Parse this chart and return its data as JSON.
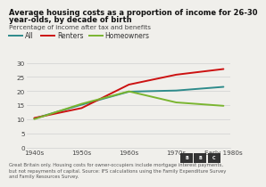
{
  "title_line1": "Average housing costs as a proportion of income for 26-30",
  "title_line2": "year-olds, by decade of birth",
  "subtitle": "Percentage of income after tax and benefits",
  "x_labels": [
    "1940s",
    "1950s",
    "1960s",
    "1970s",
    "Early 1980s"
  ],
  "x_values": [
    0,
    1,
    2,
    3,
    4
  ],
  "series": {
    "All": {
      "color": "#2e8b8b",
      "values": [
        10.3,
        15.2,
        19.8,
        20.2,
        21.5
      ]
    },
    "Renters": {
      "color": "#cc1111",
      "values": [
        10.5,
        14.0,
        22.3,
        25.8,
        27.8
      ]
    },
    "Homeowners": {
      "color": "#7ab530",
      "values": [
        10.1,
        15.5,
        19.9,
        16.0,
        14.8
      ]
    }
  },
  "ylim": [
    0,
    31
  ],
  "yticks": [
    0,
    5,
    10,
    15,
    20,
    25,
    30
  ],
  "footnote": "Great Britain only. Housing costs for owner-occupiers include mortgage interest payments,\nbut not repayments of capital. Source: IFS calculations using the Family Expenditure Survey\nand Family Resources Survey.",
  "background_color": "#f0efeb",
  "grid_color": "#d0d0d0",
  "title_fontsize": 6.0,
  "subtitle_fontsize": 5.2,
  "legend_fontsize": 5.5,
  "axis_fontsize": 5.2,
  "footnote_fontsize": 3.8,
  "line_width": 1.4
}
